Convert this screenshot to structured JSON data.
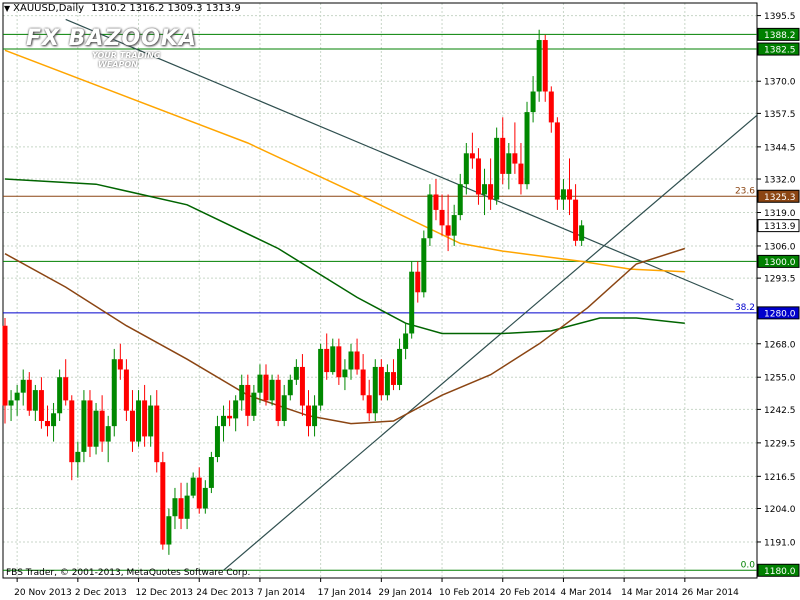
{
  "window": {
    "symbol_label": "XAUUSD,Daily",
    "ohlc_label": "1310.2 1316.2 1309.3 1313.9"
  },
  "watermark": {
    "brand": "FX BAZOOKA",
    "tagline_1": "YOUR TRADING",
    "tagline_2": "WEAPON"
  },
  "footer": {
    "copyright": "FBS Trader, © 2001-2013, MetaQuotes Software Corp."
  },
  "colors": {
    "background": "#ffffff",
    "grid": "#c8d6c8",
    "bull": "#008800",
    "bear": "#ff0000",
    "trendline": "#2f4f4f",
    "ma_orange": "#ffa500",
    "ma_green": "#006400",
    "ma_brown": "#8b4513",
    "fib_line": "#8b4513",
    "hline_green": "#008000",
    "hline_blue": "#0000cd"
  },
  "chart_data": {
    "type": "candlestick",
    "ylim": [
      1177,
      1400
    ],
    "yticks": [
      1191.0,
      1204.0,
      1216.5,
      1229.5,
      1242.5,
      1255.0,
      1268.0,
      1293.5,
      1306.0,
      1319.0,
      1332.0,
      1344.5,
      1357.5,
      1370.0,
      1395.5
    ],
    "x_tick_labels": [
      {
        "index": 2,
        "label": "20 Nov 2013"
      },
      {
        "index": 12,
        "label": "2 Dec 2013"
      },
      {
        "index": 22,
        "label": "12 Dec 2013"
      },
      {
        "index": 32,
        "label": "24 Dec 2013"
      },
      {
        "index": 42,
        "label": "7 Jan 2014"
      },
      {
        "index": 52,
        "label": "17 Jan 2014"
      },
      {
        "index": 62,
        "label": "29 Jan 2014"
      },
      {
        "index": 72,
        "label": "10 Feb 2014"
      },
      {
        "index": 82,
        "label": "20 Feb 2014"
      },
      {
        "index": 92,
        "label": "4 Mar 2014"
      },
      {
        "index": 102,
        "label": "14 Mar 2014"
      },
      {
        "index": 112,
        "label": "26 Mar 2014"
      }
    ],
    "candles": [
      [
        1275,
        1278,
        1237,
        1244
      ],
      [
        1244,
        1250,
        1238,
        1246
      ],
      [
        1246,
        1252,
        1240,
        1249
      ],
      [
        1249,
        1258,
        1244,
        1254
      ],
      [
        1254,
        1257,
        1240,
        1242
      ],
      [
        1242,
        1252,
        1238,
        1250
      ],
      [
        1250,
        1255,
        1235,
        1238
      ],
      [
        1238,
        1244,
        1232,
        1236
      ],
      [
        1236,
        1245,
        1230,
        1241
      ],
      [
        1241,
        1258,
        1238,
        1255
      ],
      [
        1255,
        1262,
        1244,
        1246
      ],
      [
        1246,
        1248,
        1215,
        1222
      ],
      [
        1222,
        1230,
        1216,
        1226
      ],
      [
        1226,
        1250,
        1222,
        1246
      ],
      [
        1246,
        1250,
        1224,
        1228
      ],
      [
        1228,
        1245,
        1225,
        1242
      ],
      [
        1242,
        1248,
        1226,
        1230
      ],
      [
        1230,
        1240,
        1222,
        1236
      ],
      [
        1236,
        1266,
        1232,
        1262
      ],
      [
        1262,
        1268,
        1254,
        1258
      ],
      [
        1258,
        1262,
        1238,
        1242
      ],
      [
        1242,
        1250,
        1226,
        1230
      ],
      [
        1230,
        1250,
        1228,
        1246
      ],
      [
        1246,
        1252,
        1228,
        1232
      ],
      [
        1232,
        1248,
        1228,
        1244
      ],
      [
        1244,
        1250,
        1218,
        1222
      ],
      [
        1222,
        1226,
        1188,
        1190
      ],
      [
        1190,
        1204,
        1186,
        1201
      ],
      [
        1201,
        1212,
        1196,
        1208
      ],
      [
        1208,
        1214,
        1196,
        1200
      ],
      [
        1200,
        1214,
        1196,
        1209
      ],
      [
        1209,
        1218,
        1208,
        1216
      ],
      [
        1216,
        1220,
        1202,
        1204
      ],
      [
        1204,
        1215,
        1202,
        1212
      ],
      [
        1212,
        1226,
        1210,
        1224
      ],
      [
        1224,
        1240,
        1222,
        1236
      ],
      [
        1236,
        1244,
        1230,
        1240
      ],
      [
        1240,
        1246,
        1236,
        1239
      ],
      [
        1239,
        1248,
        1234,
        1246
      ],
      [
        1246,
        1256,
        1242,
        1252
      ],
      [
        1252,
        1256,
        1236,
        1240
      ],
      [
        1240,
        1252,
        1238,
        1249
      ],
      [
        1249,
        1260,
        1245,
        1256
      ],
      [
        1256,
        1260,
        1244,
        1246
      ],
      [
        1246,
        1256,
        1244,
        1254
      ],
      [
        1254,
        1256,
        1236,
        1238
      ],
      [
        1238,
        1252,
        1236,
        1248
      ],
      [
        1248,
        1256,
        1246,
        1254
      ],
      [
        1254,
        1262,
        1252,
        1259
      ],
      [
        1259,
        1264,
        1240,
        1244
      ],
      [
        1244,
        1250,
        1232,
        1236
      ],
      [
        1236,
        1248,
        1232,
        1244
      ],
      [
        1244,
        1268,
        1242,
        1266
      ],
      [
        1266,
        1272,
        1254,
        1257
      ],
      [
        1257,
        1270,
        1256,
        1267
      ],
      [
        1267,
        1270,
        1252,
        1255
      ],
      [
        1255,
        1262,
        1250,
        1258
      ],
      [
        1258,
        1268,
        1254,
        1265
      ],
      [
        1265,
        1270,
        1256,
        1258
      ],
      [
        1258,
        1264,
        1246,
        1248
      ],
      [
        1248,
        1254,
        1238,
        1241
      ],
      [
        1241,
        1262,
        1238,
        1259
      ],
      [
        1259,
        1262,
        1246,
        1248
      ],
      [
        1248,
        1260,
        1246,
        1257
      ],
      [
        1257,
        1262,
        1250,
        1252
      ],
      [
        1252,
        1270,
        1250,
        1266
      ],
      [
        1266,
        1276,
        1262,
        1272
      ],
      [
        1272,
        1300,
        1270,
        1296
      ],
      [
        1296,
        1300,
        1284,
        1288
      ],
      [
        1288,
        1312,
        1286,
        1309
      ],
      [
        1309,
        1330,
        1306,
        1326
      ],
      [
        1326,
        1332,
        1316,
        1320
      ],
      [
        1320,
        1326,
        1310,
        1314
      ],
      [
        1314,
        1326,
        1304,
        1310
      ],
      [
        1310,
        1322,
        1306,
        1318
      ],
      [
        1318,
        1334,
        1316,
        1330
      ],
      [
        1330,
        1346,
        1326,
        1342
      ],
      [
        1342,
        1350,
        1336,
        1340
      ],
      [
        1340,
        1344,
        1322,
        1326
      ],
      [
        1326,
        1336,
        1318,
        1330
      ],
      [
        1330,
        1340,
        1320,
        1324
      ],
      [
        1324,
        1352,
        1322,
        1348
      ],
      [
        1348,
        1356,
        1330,
        1334
      ],
      [
        1334,
        1346,
        1328,
        1342
      ],
      [
        1342,
        1354,
        1334,
        1338
      ],
      [
        1338,
        1346,
        1326,
        1330
      ],
      [
        1330,
        1362,
        1328,
        1358
      ],
      [
        1358,
        1372,
        1354,
        1366
      ],
      [
        1366,
        1390,
        1362,
        1386
      ],
      [
        1386,
        1388,
        1362,
        1366
      ],
      [
        1366,
        1368,
        1350,
        1354
      ],
      [
        1354,
        1356,
        1320,
        1324
      ],
      [
        1324,
        1332,
        1320,
        1328
      ],
      [
        1328,
        1340,
        1318,
        1324
      ],
      [
        1324,
        1330,
        1306,
        1308
      ],
      [
        1308,
        1316,
        1306,
        1314
      ]
    ],
    "ma_orange": [
      [
        0,
        1382
      ],
      [
        20,
        1364
      ],
      [
        40,
        1346
      ],
      [
        60,
        1324
      ],
      [
        75,
        1307
      ],
      [
        82,
        1304
      ],
      [
        95,
        1300
      ],
      [
        103,
        1297
      ],
      [
        112,
        1296
      ]
    ],
    "ma_green": [
      [
        0,
        1332
      ],
      [
        15,
        1330
      ],
      [
        30,
        1322
      ],
      [
        45,
        1305
      ],
      [
        58,
        1286
      ],
      [
        66,
        1276
      ],
      [
        72,
        1272
      ],
      [
        82,
        1272
      ],
      [
        90,
        1273
      ],
      [
        98,
        1278
      ],
      [
        104,
        1278
      ],
      [
        112,
        1276
      ]
    ],
    "ma_brown": [
      [
        0,
        1303
      ],
      [
        10,
        1290
      ],
      [
        20,
        1275
      ],
      [
        30,
        1262
      ],
      [
        40,
        1248
      ],
      [
        50,
        1240
      ],
      [
        57,
        1237
      ],
      [
        64,
        1238
      ],
      [
        72,
        1248
      ],
      [
        80,
        1256
      ],
      [
        88,
        1268
      ],
      [
        96,
        1282
      ],
      [
        104,
        1299
      ],
      [
        112,
        1305
      ]
    ],
    "trendlines": [
      {
        "name": "falling-trendline",
        "from": [
          10,
          1394
        ],
        "to": [
          120,
          1285
        ]
      },
      {
        "name": "rising-trendline",
        "from": [
          36,
          1180
        ],
        "to": [
          124,
          1357
        ]
      }
    ],
    "hlines": [
      {
        "name": "level-1388",
        "value": 1388.2,
        "label": "1388.2",
        "color": "#008000"
      },
      {
        "name": "level-1382",
        "value": 1382.5,
        "label": "1382.5",
        "color": "#008000"
      },
      {
        "name": "level-1325",
        "value": 1325.3,
        "label": "1325.3",
        "color": "#8b4513",
        "fib": "23.6"
      },
      {
        "name": "level-1313",
        "value": 1313.9,
        "label": "1313.9",
        "color": "#ffffff",
        "current": true
      },
      {
        "name": "level-1300",
        "value": 1300.0,
        "label": "1300.0",
        "color": "#008000"
      },
      {
        "name": "level-1280",
        "value": 1280.0,
        "label": "1280.0",
        "color": "#0000cd",
        "fib": "38.2"
      },
      {
        "name": "level-1180",
        "value": 1180.0,
        "label": "1180.0",
        "color": "#008000",
        "fib": "0.0"
      }
    ]
  }
}
